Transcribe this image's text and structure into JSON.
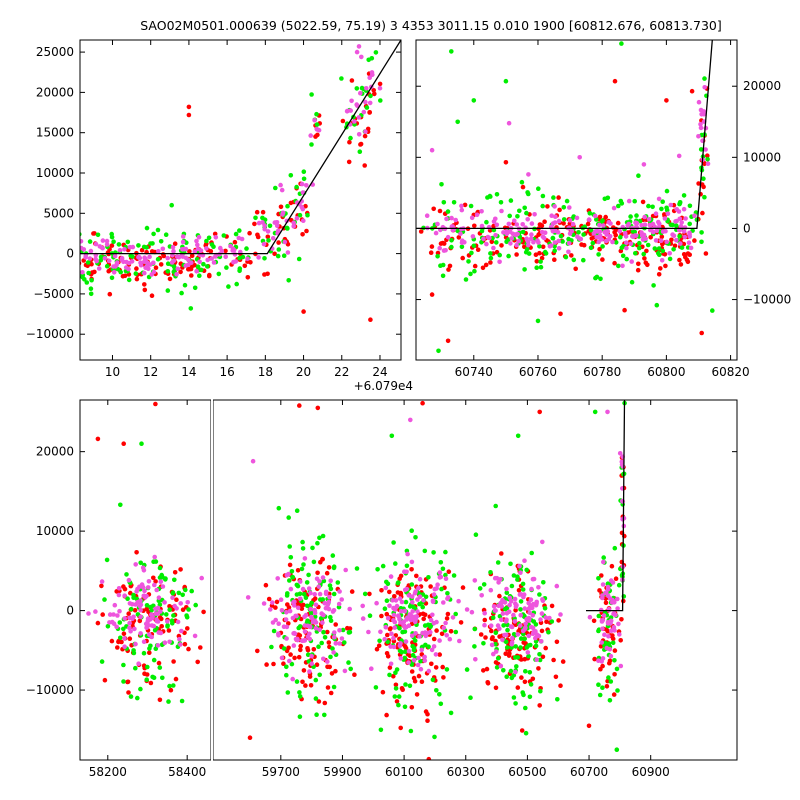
{
  "title": "SAO02M0501.000639 (5022.59, 75.19)    3 4353 3011.15 0.010 1900 [60812.676, 60813.730]",
  "colors": {
    "series_a": "#ff0000",
    "series_b": "#00ee00",
    "series_c": "#ee55dd",
    "line": "#000000"
  },
  "chart_data": [
    {
      "id": "top-left",
      "type": "scatter",
      "title": "",
      "x_offset_label": "+6.079e4",
      "xlim": [
        8.3,
        25.1
      ],
      "ylim": [
        -13200,
        26500
      ],
      "xticks": [
        10,
        12,
        14,
        16,
        18,
        20,
        22,
        24
      ],
      "yticks": [
        -10000,
        -5000,
        0,
        5000,
        10000,
        15000,
        20000,
        25000
      ],
      "yaxis_side": "left",
      "model_line": {
        "x": [
          8.3,
          18.1,
          25.1
        ],
        "y": [
          0,
          0,
          26500
        ]
      },
      "clusters": [
        {
          "x": 8.8,
          "y": -1000,
          "sx": 0.35,
          "sy": 1400,
          "n": 45
        },
        {
          "x": 9.9,
          "y": -800,
          "sx": 0.4,
          "sy": 1300,
          "n": 45
        },
        {
          "x": 11.0,
          "y": -900,
          "sx": 0.4,
          "sy": 1400,
          "n": 45
        },
        {
          "x": 12.0,
          "y": -1000,
          "sx": 0.4,
          "sy": 1500,
          "n": 45
        },
        {
          "x": 13.2,
          "y": -700,
          "sx": 0.4,
          "sy": 1500,
          "n": 45
        },
        {
          "x": 14.2,
          "y": -300,
          "sx": 0.4,
          "sy": 1500,
          "n": 45
        },
        {
          "x": 15.3,
          "y": -300,
          "sx": 0.4,
          "sy": 1400,
          "n": 40
        },
        {
          "x": 16.5,
          "y": -200,
          "sx": 0.35,
          "sy": 1400,
          "n": 35
        },
        {
          "x": 18.0,
          "y": 2000,
          "sx": 0.3,
          "sy": 2200,
          "n": 35
        },
        {
          "x": 19.0,
          "y": 4000,
          "sx": 0.35,
          "sy": 2300,
          "n": 35
        },
        {
          "x": 19.9,
          "y": 6000,
          "sx": 0.3,
          "sy": 2200,
          "n": 30
        },
        {
          "x": 20.6,
          "y": 15000,
          "sx": 0.15,
          "sy": 2800,
          "n": 14
        },
        {
          "x": 22.7,
          "y": 17000,
          "sx": 0.35,
          "sy": 2600,
          "n": 35
        },
        {
          "x": 23.4,
          "y": 20000,
          "sx": 0.3,
          "sy": 2600,
          "n": 30
        }
      ],
      "outliers": [
        {
          "x": 14.0,
          "y": 18200,
          "s": 0
        },
        {
          "x": 14.0,
          "y": 17200,
          "s": 0
        },
        {
          "x": 20.0,
          "y": -7200,
          "s": 0
        },
        {
          "x": 23.5,
          "y": -8200,
          "s": 0
        },
        {
          "x": 13.1,
          "y": 6000,
          "s": 1
        },
        {
          "x": 14.1,
          "y": -6800,
          "s": 1
        },
        {
          "x": 22.9,
          "y": 25700,
          "s": 2
        },
        {
          "x": 22.8,
          "y": 25000,
          "s": 2
        },
        {
          "x": 18.8,
          "y": 8500,
          "s": 2
        }
      ]
    },
    {
      "id": "top-right",
      "type": "scatter",
      "title": "",
      "xlim": [
        60722,
        60822
      ],
      "ylim": [
        -18500,
        26500
      ],
      "xticks": [
        60740,
        60760,
        60780,
        60800,
        60820
      ],
      "yticks": [
        -10000,
        0,
        10000,
        20000
      ],
      "yaxis_side": "right",
      "model_line": {
        "x": [
          60722,
          60809.5,
          60814.3
        ],
        "y": [
          0,
          0,
          26500
        ]
      },
      "clusters": [
        {
          "x": 60732,
          "y": -800,
          "sx": 4,
          "sy": 2200,
          "n": 70
        },
        {
          "x": 60745,
          "y": -700,
          "sx": 5,
          "sy": 2200,
          "n": 80
        },
        {
          "x": 60757,
          "y": -900,
          "sx": 4,
          "sy": 2200,
          "n": 80
        },
        {
          "x": 60768,
          "y": -800,
          "sx": 4,
          "sy": 2200,
          "n": 80
        },
        {
          "x": 60778,
          "y": -600,
          "sx": 3,
          "sy": 2200,
          "n": 70
        },
        {
          "x": 60788,
          "y": -900,
          "sx": 4,
          "sy": 2400,
          "n": 90
        },
        {
          "x": 60797,
          "y": -800,
          "sx": 4,
          "sy": 2400,
          "n": 100
        },
        {
          "x": 60805,
          "y": -300,
          "sx": 2,
          "sy": 2400,
          "n": 60
        },
        {
          "x": 60811.5,
          "y": 13000,
          "sx": 1.1,
          "sy": 6500,
          "n": 45
        }
      ],
      "outliers": [
        {
          "x": 60733,
          "y": 24900,
          "s": 1
        },
        {
          "x": 60750,
          "y": 20700,
          "s": 1
        },
        {
          "x": 60786,
          "y": 26000,
          "s": 1
        },
        {
          "x": 60729,
          "y": -17200,
          "s": 1
        },
        {
          "x": 60727,
          "y": -9300,
          "s": 0
        },
        {
          "x": 60732,
          "y": -15800,
          "s": 0
        },
        {
          "x": 60784,
          "y": 20700,
          "s": 0
        },
        {
          "x": 60800,
          "y": 18000,
          "s": 0
        },
        {
          "x": 60808,
          "y": 19300,
          "s": 0
        },
        {
          "x": 60811,
          "y": -14700,
          "s": 0
        },
        {
          "x": 60750,
          "y": 9300,
          "s": 0
        },
        {
          "x": 60767,
          "y": -12000,
          "s": 0
        },
        {
          "x": 60787,
          "y": -11500,
          "s": 0
        },
        {
          "x": 60740,
          "y": 18000,
          "s": 1
        },
        {
          "x": 60735,
          "y": 15000,
          "s": 1
        },
        {
          "x": 60755,
          "y": 6500,
          "s": 1
        },
        {
          "x": 60760,
          "y": -13000,
          "s": 1
        },
        {
          "x": 60797,
          "y": -10800,
          "s": 1
        },
        {
          "x": 60727,
          "y": 11000,
          "s": 2
        },
        {
          "x": 60751,
          "y": 14800,
          "s": 2
        },
        {
          "x": 60757,
          "y": 7600,
          "s": 2
        },
        {
          "x": 60773,
          "y": 10000,
          "s": 2
        },
        {
          "x": 60793,
          "y": 9000,
          "s": 2
        },
        {
          "x": 60804,
          "y": 10200,
          "s": 2
        }
      ]
    },
    {
      "id": "bottom",
      "type": "scatter",
      "title": "",
      "broken_axis": true,
      "segments": [
        {
          "xlim": [
            58130,
            58460
          ],
          "xticks": [
            58200,
            58400
          ]
        },
        {
          "xlim": [
            59480,
            61180
          ],
          "xticks": [
            59700,
            59900,
            60100,
            60300,
            60500,
            60700,
            60900
          ]
        }
      ],
      "ylim": [
        -18800,
        26500
      ],
      "yticks": [
        -10000,
        0,
        10000,
        20000
      ],
      "yaxis_side": "left",
      "model_line": {
        "x": [
          60690,
          60796,
          60809,
          60815
        ],
        "y": [
          0,
          0,
          0,
          26500
        ]
      },
      "clusters": [
        {
          "x": 58300,
          "y": -1100,
          "sx": 55,
          "sy": 3800,
          "n": 300,
          "seg": 0
        },
        {
          "x": 59790,
          "y": -1400,
          "sx": 65,
          "sy": 4000,
          "n": 330,
          "seg": 1
        },
        {
          "x": 60130,
          "y": -2000,
          "sx": 65,
          "sy": 4300,
          "n": 360,
          "seg": 1
        },
        {
          "x": 60470,
          "y": -1700,
          "sx": 65,
          "sy": 4200,
          "n": 330,
          "seg": 1
        },
        {
          "x": 60760,
          "y": -1500,
          "sx": 18,
          "sy": 4200,
          "n": 140,
          "seg": 1
        },
        {
          "x": 60810,
          "y": 12000,
          "sx": 4,
          "sy": 6500,
          "n": 40,
          "seg": 1
        }
      ],
      "outliers": [
        {
          "x": 58320,
          "y": 26000,
          "s": 0
        },
        {
          "x": 58175,
          "y": 21600,
          "s": 0
        },
        {
          "x": 58240,
          "y": 21000,
          "s": 0
        },
        {
          "x": 58285,
          "y": 21000,
          "s": 1
        },
        {
          "x": 59760,
          "y": 25800,
          "s": 0
        },
        {
          "x": 59820,
          "y": 25500,
          "s": 0
        },
        {
          "x": 60160,
          "y": 26100,
          "s": 0
        },
        {
          "x": 60120,
          "y": 24000,
          "s": 2
        },
        {
          "x": 60060,
          "y": 22000,
          "s": 1
        },
        {
          "x": 60540,
          "y": 25000,
          "s": 0
        },
        {
          "x": 60470,
          "y": 22000,
          "s": 1
        },
        {
          "x": 60720,
          "y": 25000,
          "s": 1
        },
        {
          "x": 60760,
          "y": 25000,
          "s": 2
        },
        {
          "x": 59610,
          "y": 18800,
          "s": 2
        },
        {
          "x": 59600,
          "y": -16000,
          "s": 0
        },
        {
          "x": 60180,
          "y": -18700,
          "s": 0
        },
        {
          "x": 60700,
          "y": -14500,
          "s": 0
        },
        {
          "x": 60790,
          "y": -17500,
          "s": 1
        }
      ]
    }
  ]
}
